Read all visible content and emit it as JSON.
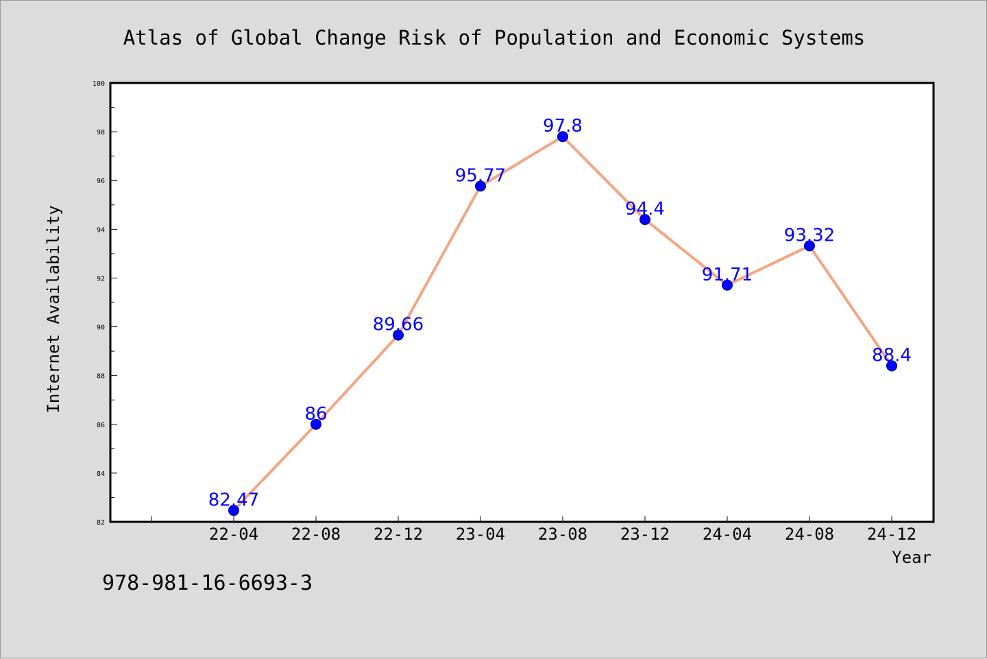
{
  "footer": {
    "code": "978-981-16-6693-3"
  },
  "colors": {
    "background": "#dcdcdc",
    "line": "#f4a582",
    "marker": "#0000ff",
    "label": "#0000ff"
  },
  "chart_data": {
    "type": "line",
    "title": "Atlas of Global Change Risk of Population and Economic Systems",
    "xlabel": "Year",
    "ylabel": "Internet Availability",
    "categories": [
      "22-04",
      "22-08",
      "22-12",
      "23-04",
      "23-08",
      "23-12",
      "24-04",
      "24-08",
      "24-12"
    ],
    "series": [
      {
        "values": [
          82.47,
          86,
          89.66,
          95.77,
          97.8,
          94.4,
          91.71,
          93.32,
          88.4
        ]
      }
    ],
    "data_labels": [
      "82.47",
      "86",
      "89.66",
      "95.77",
      "97.8",
      "94.4",
      "91.71",
      "93.32",
      "88.4"
    ],
    "ylim": [
      82,
      100
    ],
    "yticks": [
      "82",
      "84",
      "86",
      "88",
      "90",
      "92",
      "94",
      "96",
      "98",
      "100"
    ],
    "grid": false,
    "legend": "none"
  }
}
